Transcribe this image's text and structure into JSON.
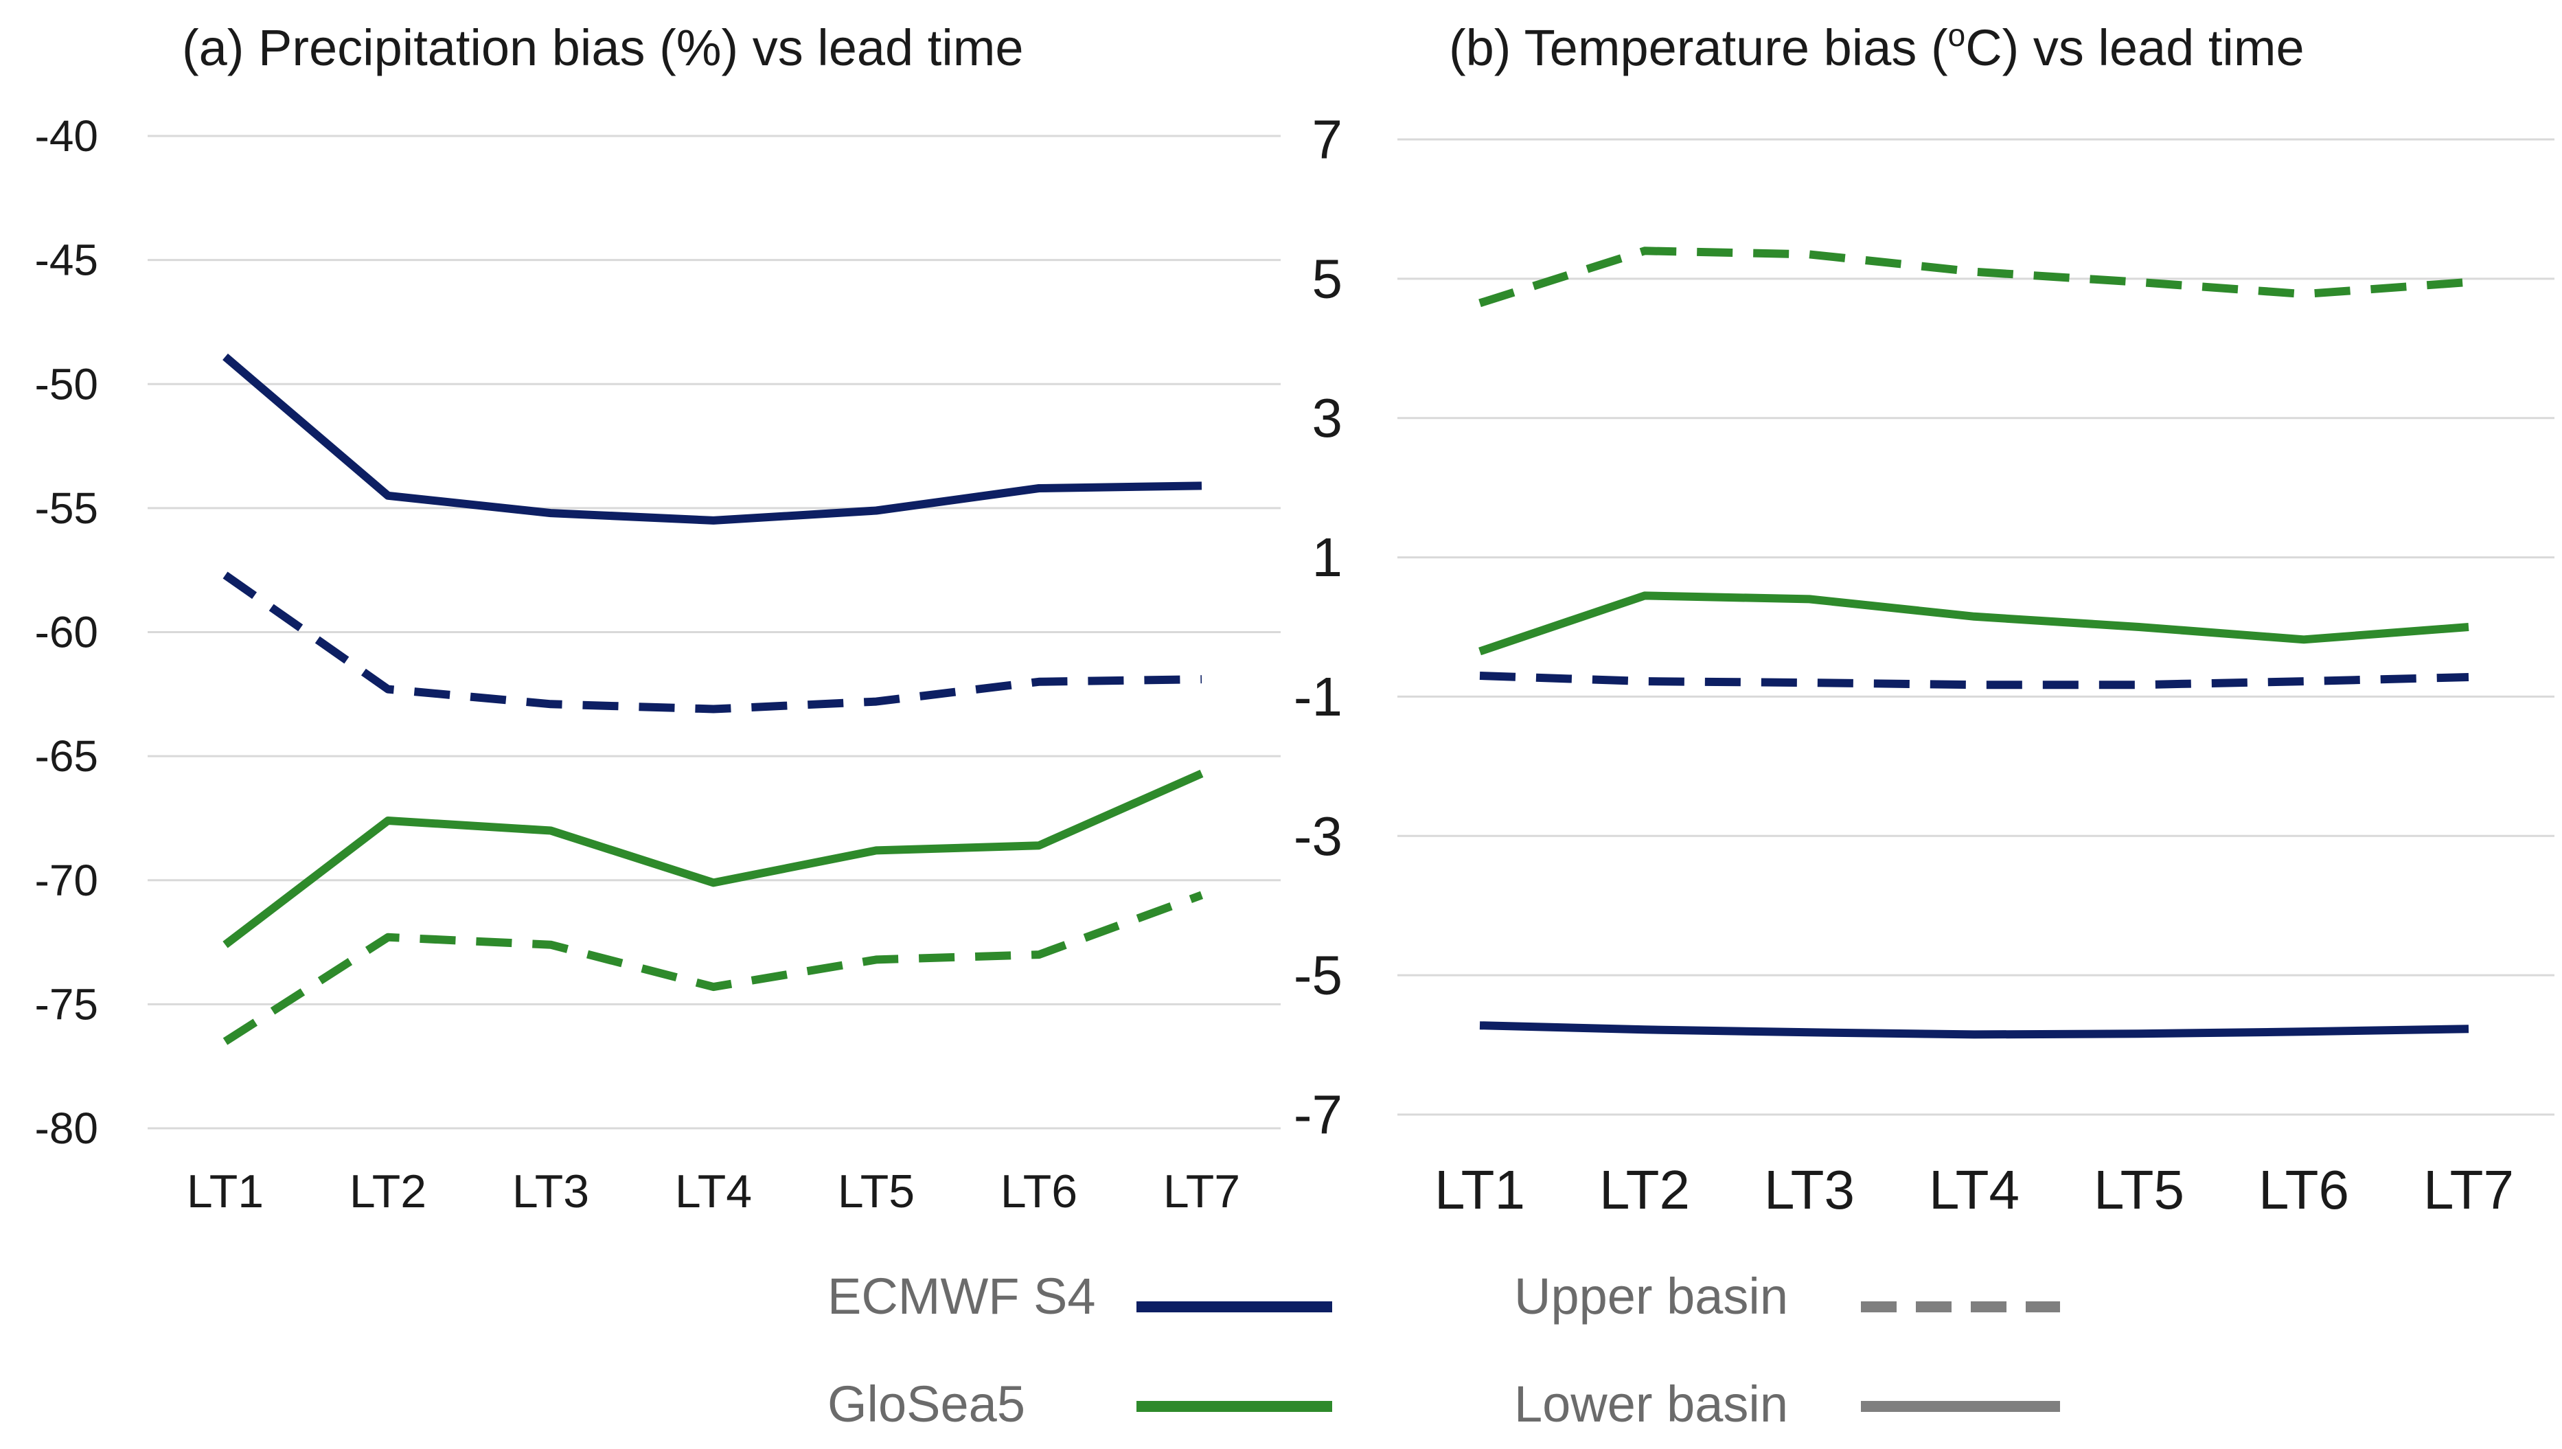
{
  "colors": {
    "ecmwf": "#0d1f63",
    "glosea": "#2e8a2b",
    "legend_gray": "#7f7f7f"
  },
  "legend": {
    "ecmwf_label": "ECMWF S4",
    "glosea_label": "GloSea5",
    "upper_label": "Upper basin",
    "lower_label": "Lower basin"
  },
  "chart_data": [
    {
      "type": "line",
      "title": "(a) Precipitation bias (%) vs lead time",
      "categories": [
        "LT1",
        "LT2",
        "LT3",
        "LT4",
        "LT5",
        "LT6",
        "LT7"
      ],
      "ylim": [
        -80,
        -40
      ],
      "yticks": [
        -40,
        -45,
        -50,
        -55,
        -60,
        -65,
        -70,
        -75,
        -80
      ],
      "grid": true,
      "series": [
        {
          "name": "ECMWF S4 - Lower basin",
          "model": "ecmwf",
          "basin": "lower",
          "values": [
            -48.9,
            -54.5,
            -55.2,
            -55.5,
            -55.1,
            -54.2,
            -54.1
          ]
        },
        {
          "name": "ECMWF S4 - Upper basin",
          "model": "ecmwf",
          "basin": "upper",
          "values": [
            -57.7,
            -62.3,
            -62.9,
            -63.1,
            -62.8,
            -62.0,
            -61.9
          ]
        },
        {
          "name": "GloSea5 - Lower basin",
          "model": "glosea",
          "basin": "lower",
          "values": [
            -72.6,
            -67.6,
            -68.0,
            -70.1,
            -68.8,
            -68.6,
            -65.7
          ]
        },
        {
          "name": "GloSea5 - Upper basin",
          "model": "glosea",
          "basin": "upper",
          "values": [
            -76.5,
            -72.3,
            -72.6,
            -74.3,
            -73.2,
            -73.0,
            -70.6
          ]
        }
      ]
    },
    {
      "type": "line",
      "title": "(b) Temperature bias (°C) vs lead time",
      "title_parts": {
        "pre": "(b) Temperature bias (",
        "sup": "o",
        "post": "C) vs lead time"
      },
      "categories": [
        "LT1",
        "LT2",
        "LT3",
        "LT4",
        "LT5",
        "LT6",
        "LT7"
      ],
      "ylim": [
        -7,
        7
      ],
      "yticks": [
        7,
        5,
        3,
        1,
        -1,
        -3,
        -5,
        -7
      ],
      "grid": true,
      "series": [
        {
          "name": "GloSea5 - Upper basin",
          "model": "glosea",
          "basin": "upper",
          "values": [
            4.65,
            5.4,
            5.35,
            5.1,
            4.95,
            4.78,
            4.95
          ]
        },
        {
          "name": "GloSea5 - Lower basin",
          "model": "glosea",
          "basin": "lower",
          "values": [
            -0.35,
            0.45,
            0.4,
            0.15,
            0.0,
            -0.18,
            0.0
          ]
        },
        {
          "name": "ECMWF S4 - Upper basin",
          "model": "ecmwf",
          "basin": "upper",
          "values": [
            -0.7,
            -0.78,
            -0.8,
            -0.83,
            -0.83,
            -0.78,
            -0.72
          ]
        },
        {
          "name": "ECMWF S4 - Lower basin",
          "model": "ecmwf",
          "basin": "lower",
          "values": [
            -5.72,
            -5.78,
            -5.82,
            -5.85,
            -5.84,
            -5.81,
            -5.77
          ]
        }
      ]
    }
  ]
}
